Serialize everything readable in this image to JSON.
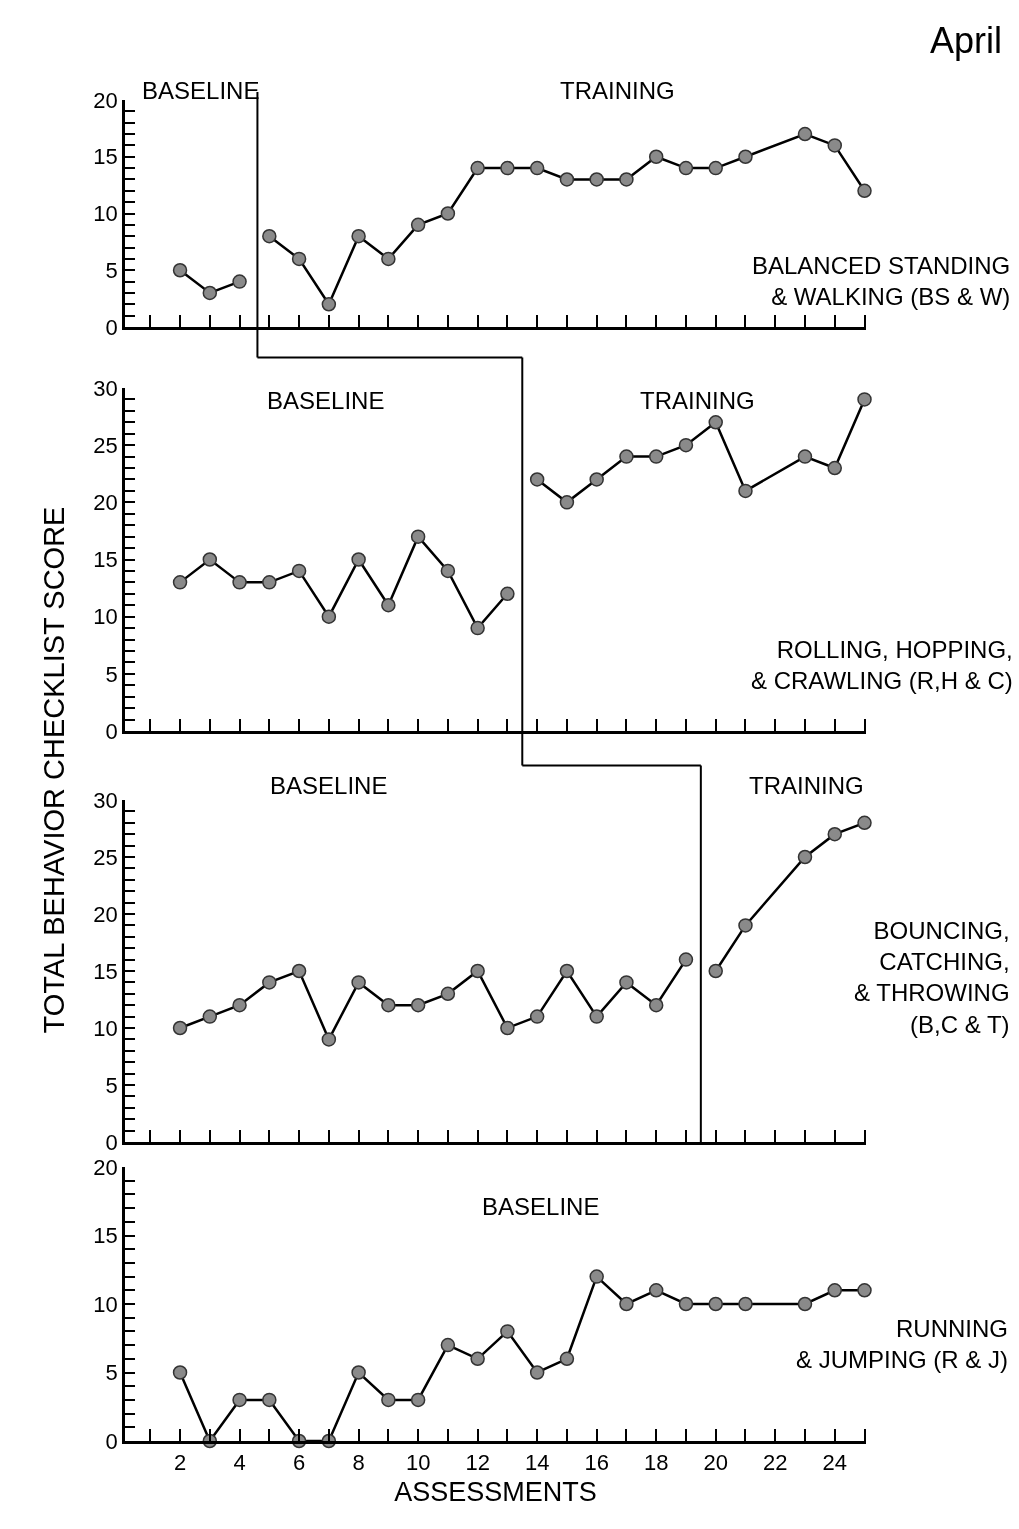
{
  "chart_data": [
    {
      "type": "line",
      "marker": "circle",
      "line_style": "solid",
      "tick_labels": "y",
      "xlim": [
        0.15,
        25.05
      ],
      "xticks": [
        {
          "value": 1,
          "label": null
        },
        {
          "value": 2,
          "label": null
        },
        {
          "value": 3,
          "label": null
        },
        {
          "value": 4,
          "label": null
        },
        {
          "value": 5,
          "label": null
        },
        {
          "value": 6,
          "label": null
        },
        {
          "value": 7,
          "label": null
        },
        {
          "value": 8,
          "label": null
        },
        {
          "value": 9,
          "label": null
        },
        {
          "value": 10,
          "label": null
        },
        {
          "value": 11,
          "label": null
        },
        {
          "value": 12,
          "label": null
        },
        {
          "value": 13,
          "label": null
        },
        {
          "value": 14,
          "label": null
        },
        {
          "value": 15,
          "label": null
        },
        {
          "value": 16,
          "label": null
        },
        {
          "value": 17,
          "label": null
        },
        {
          "value": 18,
          "label": null
        },
        {
          "value": 19,
          "label": null
        },
        {
          "value": 20,
          "label": null
        },
        {
          "value": 21,
          "label": null
        },
        {
          "value": 22,
          "label": null
        },
        {
          "value": 23,
          "label": null
        },
        {
          "value": 24,
          "label": null
        },
        {
          "value": 25,
          "label": null
        }
      ],
      "ylim": [
        0,
        20
      ],
      "yticks": [
        0,
        {
          "value": 1,
          "label": null
        },
        {
          "value": 2,
          "label": null
        },
        {
          "value": 3,
          "label": null
        },
        {
          "value": 4,
          "label": null
        },
        5,
        {
          "value": 6,
          "label": null
        },
        {
          "value": 7,
          "label": null
        },
        {
          "value": 8,
          "label": null
        },
        {
          "value": 9,
          "label": null
        },
        10,
        {
          "value": 11,
          "label": null
        },
        {
          "value": 12,
          "label": null
        },
        {
          "value": 13,
          "label": null
        },
        {
          "value": 14,
          "label": null
        },
        15,
        {
          "value": 16,
          "label": null
        },
        {
          "value": 17,
          "label": null
        },
        {
          "value": 18,
          "label": null
        },
        {
          "value": 19,
          "label": null
        },
        20
      ],
      "series": [
        {
          "color": "#8a8a8a",
          "x": [
            2,
            3,
            4
          ],
          "values": [
            5,
            3,
            4
          ]
        },
        {
          "color": "#8a8a8a",
          "x": [
            5,
            6,
            7,
            8,
            9,
            10,
            11,
            12,
            13,
            14,
            15,
            16,
            17,
            18,
            19,
            20,
            21,
            23,
            24,
            25
          ],
          "values": [
            8,
            6,
            2,
            8,
            6,
            9,
            10,
            14,
            14,
            14,
            13,
            13,
            13,
            15,
            14,
            14,
            15,
            17,
            16,
            12
          ]
        }
      ],
      "ref_lines": [
        {
          "axis": "x",
          "value": 4.6,
          "color": "#000000"
        }
      ],
      "annotations": [
        "BASELINE",
        "TRAINING",
        "BALANCED STANDING\n& WALKING (BS & W)",
        "April"
      ]
    },
    {
      "type": "line",
      "ylabel": "TOTAL BEHAVIOR CHECKLIST SCORE",
      "marker": "circle",
      "line_style": "solid",
      "tick_labels": "y",
      "xlim": [
        0.15,
        25.05
      ],
      "xticks": [
        {
          "value": 1,
          "label": null
        },
        {
          "value": 2,
          "label": null
        },
        {
          "value": 3,
          "label": null
        },
        {
          "value": 4,
          "label": null
        },
        {
          "value": 5,
          "label": null
        },
        {
          "value": 6,
          "label": null
        },
        {
          "value": 7,
          "label": null
        },
        {
          "value": 8,
          "label": null
        },
        {
          "value": 9,
          "label": null
        },
        {
          "value": 10,
          "label": null
        },
        {
          "value": 11,
          "label": null
        },
        {
          "value": 12,
          "label": null
        },
        {
          "value": 13,
          "label": null
        },
        {
          "value": 14,
          "label": null
        },
        {
          "value": 15,
          "label": null
        },
        {
          "value": 16,
          "label": null
        },
        {
          "value": 17,
          "label": null
        },
        {
          "value": 18,
          "label": null
        },
        {
          "value": 19,
          "label": null
        },
        {
          "value": 20,
          "label": null
        },
        {
          "value": 21,
          "label": null
        },
        {
          "value": 22,
          "label": null
        },
        {
          "value": 23,
          "label": null
        },
        {
          "value": 24,
          "label": null
        },
        {
          "value": 25,
          "label": null
        }
      ],
      "ylim": [
        0,
        30
      ],
      "yticks": [
        0,
        {
          "value": 1,
          "label": null
        },
        {
          "value": 2,
          "label": null
        },
        {
          "value": 3,
          "label": null
        },
        {
          "value": 4,
          "label": null
        },
        5,
        {
          "value": 6,
          "label": null
        },
        {
          "value": 7,
          "label": null
        },
        {
          "value": 8,
          "label": null
        },
        {
          "value": 9,
          "label": null
        },
        10,
        {
          "value": 11,
          "label": null
        },
        {
          "value": 12,
          "label": null
        },
        {
          "value": 13,
          "label": null
        },
        {
          "value": 14,
          "label": null
        },
        15,
        {
          "value": 16,
          "label": null
        },
        {
          "value": 17,
          "label": null
        },
        {
          "value": 18,
          "label": null
        },
        {
          "value": 19,
          "label": null
        },
        20,
        {
          "value": 21,
          "label": null
        },
        {
          "value": 22,
          "label": null
        },
        {
          "value": 23,
          "label": null
        },
        {
          "value": 24,
          "label": null
        },
        25,
        {
          "value": 26,
          "label": null
        },
        {
          "value": 27,
          "label": null
        },
        {
          "value": 28,
          "label": null
        },
        {
          "value": 29,
          "label": null
        },
        30
      ],
      "series": [
        {
          "color": "#8a8a8a",
          "x": [
            2,
            3,
            4,
            5,
            6,
            7,
            8,
            9,
            10,
            11,
            12,
            13
          ],
          "values": [
            13,
            15,
            13,
            13,
            14,
            10,
            15,
            11,
            17,
            14,
            9,
            12
          ]
        },
        {
          "color": "#8a8a8a",
          "x": [
            14,
            15,
            16,
            17,
            18,
            19,
            20,
            21,
            23,
            24,
            25
          ],
          "values": [
            22,
            20,
            22,
            24,
            24,
            25,
            27,
            21,
            24,
            23,
            29
          ]
        }
      ],
      "ref_lines": [
        {
          "axis": "x",
          "value": 13.5,
          "color": "#000000"
        }
      ],
      "annotations": [
        "BASELINE",
        "TRAINING",
        "ROLLING, HOPPING,\n& CRAWLING (R,H & C)"
      ]
    },
    {
      "type": "line",
      "marker": "circle",
      "line_style": "solid",
      "tick_labels": "y",
      "xlim": [
        0.15,
        25.05
      ],
      "xticks": [
        {
          "value": 1,
          "label": null
        },
        {
          "value": 2,
          "label": null
        },
        {
          "value": 3,
          "label": null
        },
        {
          "value": 4,
          "label": null
        },
        {
          "value": 5,
          "label": null
        },
        {
          "value": 6,
          "label": null
        },
        {
          "value": 7,
          "label": null
        },
        {
          "value": 8,
          "label": null
        },
        {
          "value": 9,
          "label": null
        },
        {
          "value": 10,
          "label": null
        },
        {
          "value": 11,
          "label": null
        },
        {
          "value": 12,
          "label": null
        },
        {
          "value": 13,
          "label": null
        },
        {
          "value": 14,
          "label": null
        },
        {
          "value": 15,
          "label": null
        },
        {
          "value": 16,
          "label": null
        },
        {
          "value": 17,
          "label": null
        },
        {
          "value": 18,
          "label": null
        },
        {
          "value": 19,
          "label": null
        },
        {
          "value": 20,
          "label": null
        },
        {
          "value": 21,
          "label": null
        },
        {
          "value": 22,
          "label": null
        },
        {
          "value": 23,
          "label": null
        },
        {
          "value": 24,
          "label": null
        },
        {
          "value": 25,
          "label": null
        }
      ],
      "ylim": [
        0,
        30
      ],
      "yticks": [
        0,
        {
          "value": 1,
          "label": null
        },
        {
          "value": 2,
          "label": null
        },
        {
          "value": 3,
          "label": null
        },
        {
          "value": 4,
          "label": null
        },
        5,
        {
          "value": 6,
          "label": null
        },
        {
          "value": 7,
          "label": null
        },
        {
          "value": 8,
          "label": null
        },
        {
          "value": 9,
          "label": null
        },
        10,
        {
          "value": 11,
          "label": null
        },
        {
          "value": 12,
          "label": null
        },
        {
          "value": 13,
          "label": null
        },
        {
          "value": 14,
          "label": null
        },
        15,
        {
          "value": 16,
          "label": null
        },
        {
          "value": 17,
          "label": null
        },
        {
          "value": 18,
          "label": null
        },
        {
          "value": 19,
          "label": null
        },
        20,
        {
          "value": 21,
          "label": null
        },
        {
          "value": 22,
          "label": null
        },
        {
          "value": 23,
          "label": null
        },
        {
          "value": 24,
          "label": null
        },
        25,
        {
          "value": 26,
          "label": null
        },
        {
          "value": 27,
          "label": null
        },
        {
          "value": 28,
          "label": null
        },
        {
          "value": 29,
          "label": null
        },
        30
      ],
      "series": [
        {
          "color": "#8a8a8a",
          "x": [
            2,
            3,
            4,
            5,
            6,
            7,
            8,
            9,
            10,
            11,
            12,
            13,
            14,
            15,
            16,
            17,
            18,
            19
          ],
          "values": [
            10,
            11,
            12,
            14,
            15,
            9,
            14,
            12,
            12,
            13,
            15,
            10,
            11,
            15,
            11,
            14,
            12,
            16
          ]
        },
        {
          "color": "#8a8a8a",
          "x": [
            20,
            21,
            23,
            24,
            25
          ],
          "values": [
            15,
            19,
            25,
            27,
            28
          ]
        }
      ],
      "ref_lines": [
        {
          "axis": "x",
          "value": 19.5,
          "color": "#000000"
        }
      ],
      "annotations": [
        "BASELINE",
        "TRAINING",
        "BOUNCING,\nCATCHING,\n& THROWING\n(B,C & T)"
      ]
    },
    {
      "type": "line",
      "xlabel": "ASSESSMENTS",
      "marker": "circle",
      "line_style": "solid",
      "xlim": [
        0.15,
        25.05
      ],
      "xticks": [
        {
          "value": 1,
          "label": null
        },
        2,
        {
          "value": 3,
          "label": null
        },
        4,
        {
          "value": 5,
          "label": null
        },
        6,
        {
          "value": 7,
          "label": null
        },
        8,
        {
          "value": 9,
          "label": null
        },
        10,
        {
          "value": 11,
          "label": null
        },
        12,
        {
          "value": 13,
          "label": null
        },
        14,
        {
          "value": 15,
          "label": null
        },
        16,
        {
          "value": 17,
          "label": null
        },
        18,
        {
          "value": 19,
          "label": null
        },
        20,
        {
          "value": 21,
          "label": null
        },
        22,
        {
          "value": 23,
          "label": null
        },
        24,
        {
          "value": 25,
          "label": null
        }
      ],
      "ylim": [
        0,
        20
      ],
      "yticks": [
        0,
        {
          "value": 1,
          "label": null
        },
        {
          "value": 2,
          "label": null
        },
        {
          "value": 3,
          "label": null
        },
        {
          "value": 4,
          "label": null
        },
        5,
        {
          "value": 6,
          "label": null
        },
        {
          "value": 7,
          "label": null
        },
        {
          "value": 8,
          "label": null
        },
        {
          "value": 9,
          "label": null
        },
        10,
        {
          "value": 11,
          "label": null
        },
        {
          "value": 12,
          "label": null
        },
        {
          "value": 13,
          "label": null
        },
        {
          "value": 14,
          "label": null
        },
        15,
        {
          "value": 16,
          "label": null
        },
        {
          "value": 17,
          "label": null
        },
        {
          "value": 18,
          "label": null
        },
        {
          "value": 19,
          "label": null
        },
        20
      ],
      "series": [
        {
          "color": "#8a8a8a",
          "x": [
            2,
            3,
            4,
            5,
            6,
            7,
            8,
            9,
            10,
            11,
            12,
            13,
            14,
            15,
            16,
            17,
            18,
            19,
            20,
            21,
            23,
            24,
            25
          ],
          "values": [
            5,
            0,
            3,
            3,
            0,
            0,
            5,
            3,
            3,
            7,
            6,
            8,
            5,
            6,
            12,
            10,
            11,
            10,
            10,
            10,
            10,
            11,
            11
          ]
        }
      ],
      "annotations": [
        "BASELINE",
        "RUNNING\n& JUMPING (R & J)"
      ]
    }
  ]
}
